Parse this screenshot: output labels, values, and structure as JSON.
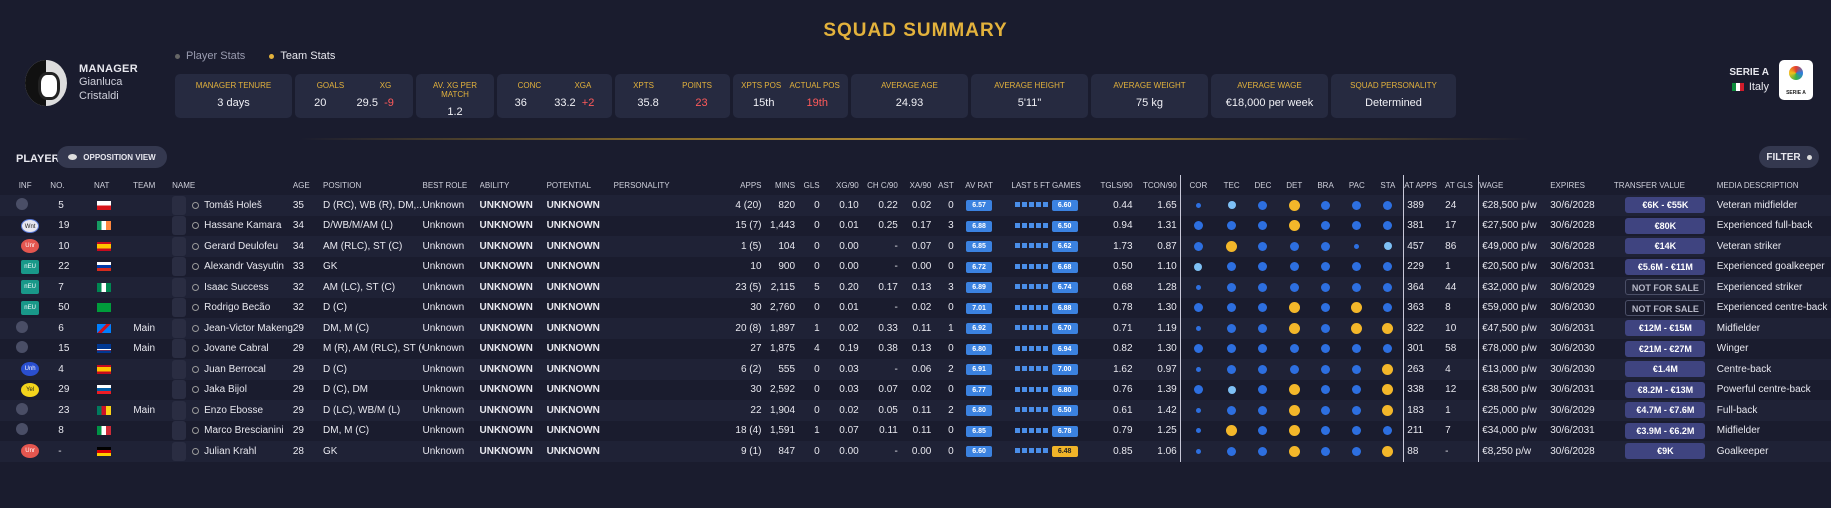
{
  "title": "SQUAD SUMMARY",
  "manager": {
    "label": "MANAGER",
    "first": "Gianluca",
    "last": "Cristaldi"
  },
  "stat_tabs": [
    {
      "label": "Player Stats"
    },
    {
      "label": "Team Stats"
    }
  ],
  "cards": {
    "tenure": {
      "label": "MANAGER TENURE",
      "value": "3 days"
    },
    "goals": {
      "label": "GOALS",
      "value": "20"
    },
    "xg": {
      "label": "XG",
      "value": "29.5",
      "diff": "-9"
    },
    "avxg": {
      "label": "AV. XG PER MATCH",
      "value": "1.2"
    },
    "conc": {
      "label": "CONC",
      "value": "36"
    },
    "xga": {
      "label": "XGA",
      "value": "33.2",
      "diff": "+2"
    },
    "xpts": {
      "label": "XPTS",
      "value": "35.8"
    },
    "points": {
      "label": "POINTS",
      "value": "23"
    },
    "xpts_pos": {
      "label": "XPTS POS",
      "value": "15th"
    },
    "actual_pos": {
      "label": "ACTUAL POS",
      "value": "19th"
    },
    "avg_age": {
      "label": "AVERAGE AGE",
      "value": "24.93"
    },
    "avg_height": {
      "label": "AVERAGE HEIGHT",
      "value": "5'11\""
    },
    "avg_weight": {
      "label": "AVERAGE WEIGHT",
      "value": "75 kg"
    },
    "avg_wage": {
      "label": "AVERAGE WAGE",
      "value": "€18,000 per week"
    },
    "personality": {
      "label": "SQUAD PERSONALITY",
      "value": "Determined"
    }
  },
  "league": {
    "name": "SERIE A",
    "country": "Italy"
  },
  "players_label": "PLAYERS",
  "opposition_btn": "OPPOSITION VIEW",
  "filter_btn": "FILTER",
  "columns": [
    "INF",
    "NO.",
    "NAT",
    "TEAM",
    "NAME",
    "AGE",
    "POSITION",
    "BEST ROLE",
    "ABILITY",
    "POTENTIAL",
    "PERSONALITY",
    "APPS",
    "MINS",
    "GLS",
    "XG/90",
    "CH C/90",
    "XA/90",
    "AST",
    "AV RAT",
    "LAST 5 FT GAMES",
    "TGLS/90",
    "TCON/90",
    "COR",
    "TEC",
    "DEC",
    "DET",
    "BRA",
    "PAC",
    "STA",
    "AT APPS",
    "AT GLS",
    "WAGE",
    "EXPIRES",
    "TRANSFER VALUE",
    "MEDIA DESCRIPTION"
  ],
  "colors": {
    "accent": "#e3b23c",
    "blue": "#3b82e0",
    "gold": "#f0b429",
    "red": "#ff5a5a"
  },
  "players": [
    {
      "inf": "",
      "no": "5",
      "nat": "CZE",
      "team": "",
      "name": "Tomáš Holeš",
      "age": "35",
      "position": "D (RC), WB (R), DM,...",
      "best_role": "Unknown",
      "ability": "UNKNOWN",
      "potential": "UNKNOWN",
      "personality": "",
      "apps": "4 (20)",
      "mins": "820",
      "gls": "0",
      "xg90": "0.10",
      "chc90": "0.22",
      "xa90": "0.02",
      "ast": "0",
      "av_rat": "6.57",
      "last5": "6.60",
      "last5_gold": false,
      "tgls90": "0.44",
      "tcon90": "1.65",
      "attrs": [
        "s",
        "l",
        "b",
        "g",
        "b",
        "b",
        "b"
      ],
      "at_apps": "389",
      "at_gls": "24",
      "wage": "€28,500 p/w",
      "expires": "30/6/2028",
      "value": "€6K - €55K",
      "media": "Veteran midfielder"
    },
    {
      "inf": "Wnt",
      "no": "19",
      "nat": "IRL",
      "team": "",
      "name": "Hassane Kamara",
      "age": "34",
      "position": "D/WB/M/AM (L)",
      "best_role": "Unknown",
      "ability": "UNKNOWN",
      "potential": "UNKNOWN",
      "personality": "",
      "apps": "15 (7)",
      "mins": "1,443",
      "gls": "0",
      "xg90": "0.01",
      "chc90": "0.25",
      "xa90": "0.17",
      "ast": "3",
      "av_rat": "6.88",
      "last5": "6.50",
      "last5_gold": false,
      "tgls90": "0.94",
      "tcon90": "1.31",
      "attrs": [
        "b",
        "b",
        "b",
        "g",
        "b",
        "b",
        "b"
      ],
      "at_apps": "381",
      "at_gls": "17",
      "wage": "€27,500 p/w",
      "expires": "30/6/2028",
      "value": "€80K",
      "media": "Experienced full-back"
    },
    {
      "inf": "Unr",
      "no": "10",
      "nat": "ESP",
      "team": "",
      "name": "Gerard Deulofeu",
      "age": "34",
      "position": "AM (RLC), ST (C)",
      "best_role": "Unknown",
      "ability": "UNKNOWN",
      "potential": "UNKNOWN",
      "personality": "",
      "apps": "1 (5)",
      "mins": "104",
      "gls": "0",
      "xg90": "0.00",
      "chc90": "-",
      "xa90": "0.07",
      "ast": "0",
      "av_rat": "6.85",
      "last5": "6.62",
      "last5_gold": false,
      "tgls90": "1.73",
      "tcon90": "0.87",
      "attrs": [
        "b",
        "g",
        "b",
        "b",
        "b",
        "s",
        "l"
      ],
      "at_apps": "457",
      "at_gls": "86",
      "wage": "€49,000 p/w",
      "expires": "30/6/2028",
      "value": "€14K",
      "media": "Veteran striker"
    },
    {
      "inf": "nEU",
      "no": "22",
      "nat": "RUS",
      "team": "",
      "name": "Alexandr Vasyutin",
      "age": "33",
      "position": "GK",
      "best_role": "Unknown",
      "ability": "UNKNOWN",
      "potential": "UNKNOWN",
      "personality": "",
      "apps": "10",
      "mins": "900",
      "gls": "0",
      "xg90": "0.00",
      "chc90": "-",
      "xa90": "0.00",
      "ast": "0",
      "av_rat": "6.72",
      "last5": "6.68",
      "last5_gold": false,
      "tgls90": "0.50",
      "tcon90": "1.10",
      "attrs": [
        "l",
        "b",
        "b",
        "b",
        "b",
        "b",
        "b"
      ],
      "at_apps": "229",
      "at_gls": "1",
      "wage": "€20,500 p/w",
      "expires": "30/6/2031",
      "value": "€5.6M - €11M",
      "media": "Experienced goalkeeper"
    },
    {
      "inf": "nEU",
      "no": "7",
      "nat": "NGA",
      "team": "",
      "name": "Isaac Success",
      "age": "32",
      "position": "AM (LC), ST (C)",
      "best_role": "Unknown",
      "ability": "UNKNOWN",
      "potential": "UNKNOWN",
      "personality": "",
      "apps": "23 (5)",
      "mins": "2,115",
      "gls": "5",
      "xg90": "0.20",
      "chc90": "0.17",
      "xa90": "0.13",
      "ast": "3",
      "av_rat": "6.89",
      "last5": "6.74",
      "last5_gold": false,
      "tgls90": "0.68",
      "tcon90": "1.28",
      "attrs": [
        "s",
        "b",
        "b",
        "b",
        "b",
        "b",
        "b"
      ],
      "at_apps": "364",
      "at_gls": "44",
      "wage": "€32,000 p/w",
      "expires": "30/6/2029",
      "value": "NOT FOR SALE",
      "media": "Experienced striker"
    },
    {
      "inf": "nEU",
      "no": "50",
      "nat": "BRA",
      "team": "",
      "name": "Rodrigo Becão",
      "age": "32",
      "position": "D (C)",
      "best_role": "Unknown",
      "ability": "UNKNOWN",
      "potential": "UNKNOWN",
      "personality": "",
      "apps": "30",
      "mins": "2,760",
      "gls": "0",
      "xg90": "0.01",
      "chc90": "-",
      "xa90": "0.02",
      "ast": "0",
      "av_rat": "7.01",
      "last5": "6.88",
      "last5_gold": false,
      "tgls90": "0.78",
      "tcon90": "1.30",
      "attrs": [
        "b",
        "b",
        "b",
        "g",
        "b",
        "g",
        "b"
      ],
      "at_apps": "363",
      "at_gls": "8",
      "wage": "€59,000 p/w",
      "expires": "30/6/2030",
      "value": "NOT FOR SALE",
      "media": "Experienced centre-back"
    },
    {
      "inf": "",
      "no": "6",
      "nat": "COD",
      "team": "Main",
      "name": "Jean-Victor Makengo",
      "age": "29",
      "position": "DM, M (C)",
      "best_role": "Unknown",
      "ability": "UNKNOWN",
      "potential": "UNKNOWN",
      "personality": "",
      "apps": "20 (8)",
      "mins": "1,897",
      "gls": "1",
      "xg90": "0.02",
      "chc90": "0.33",
      "xa90": "0.11",
      "ast": "1",
      "av_rat": "6.92",
      "last5": "6.70",
      "last5_gold": false,
      "tgls90": "0.71",
      "tcon90": "1.19",
      "attrs": [
        "s",
        "b",
        "b",
        "g",
        "b",
        "g",
        "g"
      ],
      "at_apps": "322",
      "at_gls": "10",
      "wage": "€47,500 p/w",
      "expires": "30/6/2031",
      "value": "€12M - €15M",
      "media": "Midfielder"
    },
    {
      "inf": "",
      "no": "15",
      "nat": "CPV",
      "team": "Main",
      "name": "Jovane Cabral",
      "age": "29",
      "position": "M (R), AM (RLC), ST (C)",
      "best_role": "Unknown",
      "ability": "UNKNOWN",
      "potential": "UNKNOWN",
      "personality": "",
      "apps": "27",
      "mins": "1,875",
      "gls": "4",
      "xg90": "0.19",
      "chc90": "0.38",
      "xa90": "0.13",
      "ast": "0",
      "av_rat": "6.80",
      "last5": "6.94",
      "last5_gold": false,
      "tgls90": "0.82",
      "tcon90": "1.30",
      "attrs": [
        "b",
        "b",
        "b",
        "b",
        "b",
        "b",
        "b"
      ],
      "at_apps": "301",
      "at_gls": "58",
      "wage": "€78,000 p/w",
      "expires": "30/6/2030",
      "value": "€21M - €27M",
      "media": "Winger"
    },
    {
      "inf": "Unh",
      "no": "4",
      "nat": "ESP",
      "team": "",
      "name": "Juan Berrocal",
      "age": "29",
      "position": "D (C)",
      "best_role": "Unknown",
      "ability": "UNKNOWN",
      "potential": "UNKNOWN",
      "personality": "",
      "apps": "6 (2)",
      "mins": "555",
      "gls": "0",
      "xg90": "0.03",
      "chc90": "-",
      "xa90": "0.06",
      "ast": "2",
      "av_rat": "6.91",
      "last5": "7.00",
      "last5_gold": false,
      "tgls90": "1.62",
      "tcon90": "0.97",
      "attrs": [
        "s",
        "b",
        "b",
        "b",
        "b",
        "b",
        "g"
      ],
      "at_apps": "263",
      "at_gls": "4",
      "wage": "€13,000 p/w",
      "expires": "30/6/2030",
      "value": "€1.4M",
      "media": "Centre-back"
    },
    {
      "inf": "Yel",
      "no": "29",
      "nat": "SVN",
      "team": "",
      "name": "Jaka Bijol",
      "age": "29",
      "position": "D (C), DM",
      "best_role": "Unknown",
      "ability": "UNKNOWN",
      "potential": "UNKNOWN",
      "personality": "",
      "apps": "30",
      "mins": "2,592",
      "gls": "0",
      "xg90": "0.03",
      "chc90": "0.07",
      "xa90": "0.02",
      "ast": "0",
      "av_rat": "6.77",
      "last5": "6.80",
      "last5_gold": false,
      "tgls90": "0.76",
      "tcon90": "1.39",
      "attrs": [
        "b",
        "l",
        "b",
        "g",
        "b",
        "b",
        "g"
      ],
      "at_apps": "338",
      "at_gls": "12",
      "wage": "€38,500 p/w",
      "expires": "30/6/2031",
      "value": "€8.2M - €13M",
      "media": "Powerful centre-back"
    },
    {
      "inf": "",
      "no": "23",
      "nat": "CMR",
      "team": "Main",
      "name": "Enzo Ebosse",
      "age": "29",
      "position": "D (LC), WB/M (L)",
      "best_role": "Unknown",
      "ability": "UNKNOWN",
      "potential": "UNKNOWN",
      "personality": "",
      "apps": "22",
      "mins": "1,904",
      "gls": "0",
      "xg90": "0.02",
      "chc90": "0.05",
      "xa90": "0.11",
      "ast": "2",
      "av_rat": "6.80",
      "last5": "6.50",
      "last5_gold": false,
      "tgls90": "0.61",
      "tcon90": "1.42",
      "attrs": [
        "s",
        "b",
        "b",
        "g",
        "b",
        "b",
        "g"
      ],
      "at_apps": "183",
      "at_gls": "1",
      "wage": "€25,000 p/w",
      "expires": "30/6/2029",
      "value": "€4.7M - €7.6M",
      "media": "Full-back"
    },
    {
      "inf": "",
      "no": "8",
      "nat": "ITA",
      "team": "",
      "name": "Marco Brescianini",
      "age": "29",
      "position": "DM, M (C)",
      "best_role": "Unknown",
      "ability": "UNKNOWN",
      "potential": "UNKNOWN",
      "personality": "",
      "apps": "18 (4)",
      "mins": "1,591",
      "gls": "1",
      "xg90": "0.07",
      "chc90": "0.11",
      "xa90": "0.11",
      "ast": "0",
      "av_rat": "6.85",
      "last5": "6.78",
      "last5_gold": false,
      "tgls90": "0.79",
      "tcon90": "1.25",
      "attrs": [
        "s",
        "g",
        "b",
        "g",
        "b",
        "b",
        "b"
      ],
      "at_apps": "211",
      "at_gls": "7",
      "wage": "€34,000 p/w",
      "expires": "30/6/2031",
      "value": "€3.9M - €6.2M",
      "media": "Midfielder"
    },
    {
      "inf": "Unr",
      "no": "-",
      "nat": "GER",
      "team": "",
      "name": "Julian Krahl",
      "age": "28",
      "position": "GK",
      "best_role": "Unknown",
      "ability": "UNKNOWN",
      "potential": "UNKNOWN",
      "personality": "",
      "apps": "9 (1)",
      "mins": "847",
      "gls": "0",
      "xg90": "0.00",
      "chc90": "-",
      "xa90": "0.00",
      "ast": "0",
      "av_rat": "6.60",
      "last5": "6.48",
      "last5_gold": true,
      "tgls90": "0.85",
      "tcon90": "1.06",
      "attrs": [
        "s",
        "b",
        "b",
        "g",
        "b",
        "b",
        "g"
      ],
      "at_apps": "88",
      "at_gls": "-",
      "wage": "€8,250 p/w",
      "expires": "30/6/2028",
      "value": "€9K",
      "media": "Goalkeeper"
    }
  ]
}
